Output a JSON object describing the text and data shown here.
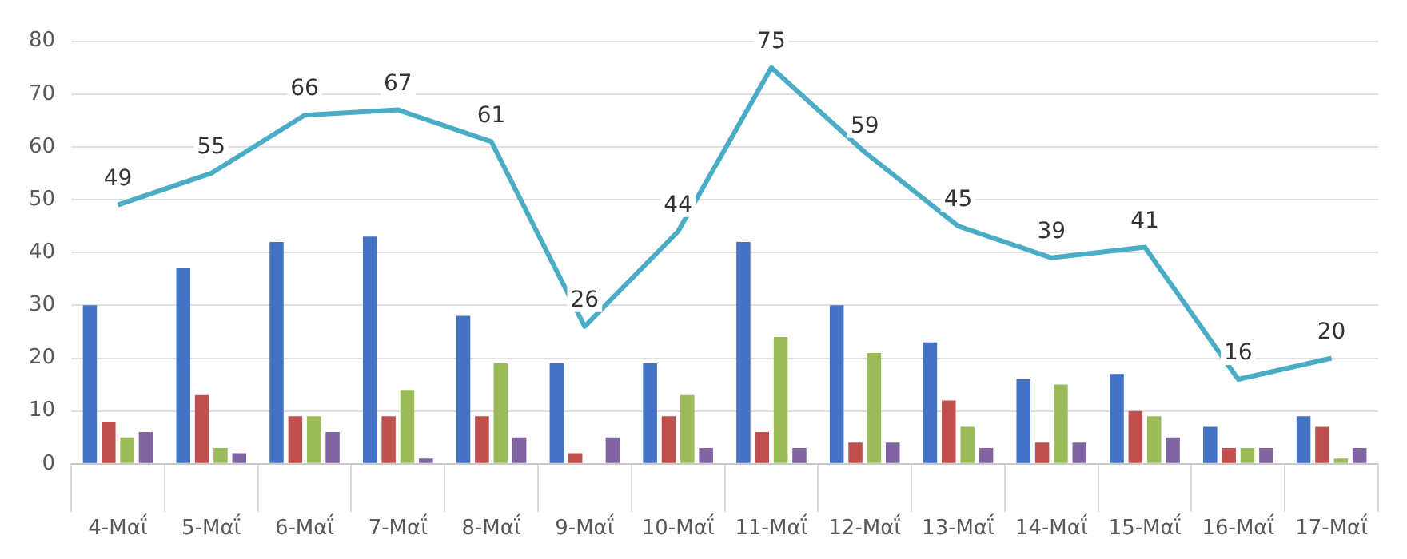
{
  "chart_data": {
    "type": "bar",
    "categories": [
      "4-Μαΐ",
      "5-Μαΐ",
      "6-Μαΐ",
      "7-Μαΐ",
      "8-Μαΐ",
      "9-Μαΐ",
      "10-Μαΐ",
      "11-Μαΐ",
      "12-Μαΐ",
      "13-Μαΐ",
      "14-Μαΐ",
      "15-Μαΐ",
      "16-Μαΐ",
      "17-Μαΐ"
    ],
    "series": [
      {
        "color": "#4472c4",
        "values": [
          30,
          37,
          42,
          43,
          28,
          19,
          19,
          42,
          30,
          23,
          16,
          17,
          7,
          9
        ]
      },
      {
        "color": "#c0504d",
        "values": [
          8,
          13,
          9,
          9,
          9,
          2,
          9,
          6,
          4,
          12,
          4,
          10,
          3,
          7
        ]
      },
      {
        "color": "#9bbb59",
        "values": [
          5,
          3,
          9,
          14,
          19,
          0,
          13,
          24,
          21,
          7,
          15,
          9,
          3,
          1
        ]
      },
      {
        "color": "#8064a2",
        "values": [
          6,
          2,
          6,
          1,
          5,
          5,
          3,
          3,
          4,
          3,
          4,
          5,
          3,
          3
        ]
      },
      {
        "type": "line",
        "color": "#4bacc6",
        "values": [
          49,
          55,
          66,
          67,
          61,
          26,
          44,
          75,
          59,
          45,
          39,
          41,
          16,
          20
        ],
        "value_labels": [
          "49",
          "55",
          "66",
          "67",
          "61",
          "26",
          "44",
          "75",
          "59",
          "45",
          "39",
          "41",
          "16",
          "20"
        ]
      }
    ],
    "ylim": [
      0,
      80
    ],
    "yticks": [
      0,
      10,
      20,
      30,
      40,
      50,
      60,
      70,
      80
    ],
    "grid": "y",
    "legend": false,
    "marker": "none"
  }
}
